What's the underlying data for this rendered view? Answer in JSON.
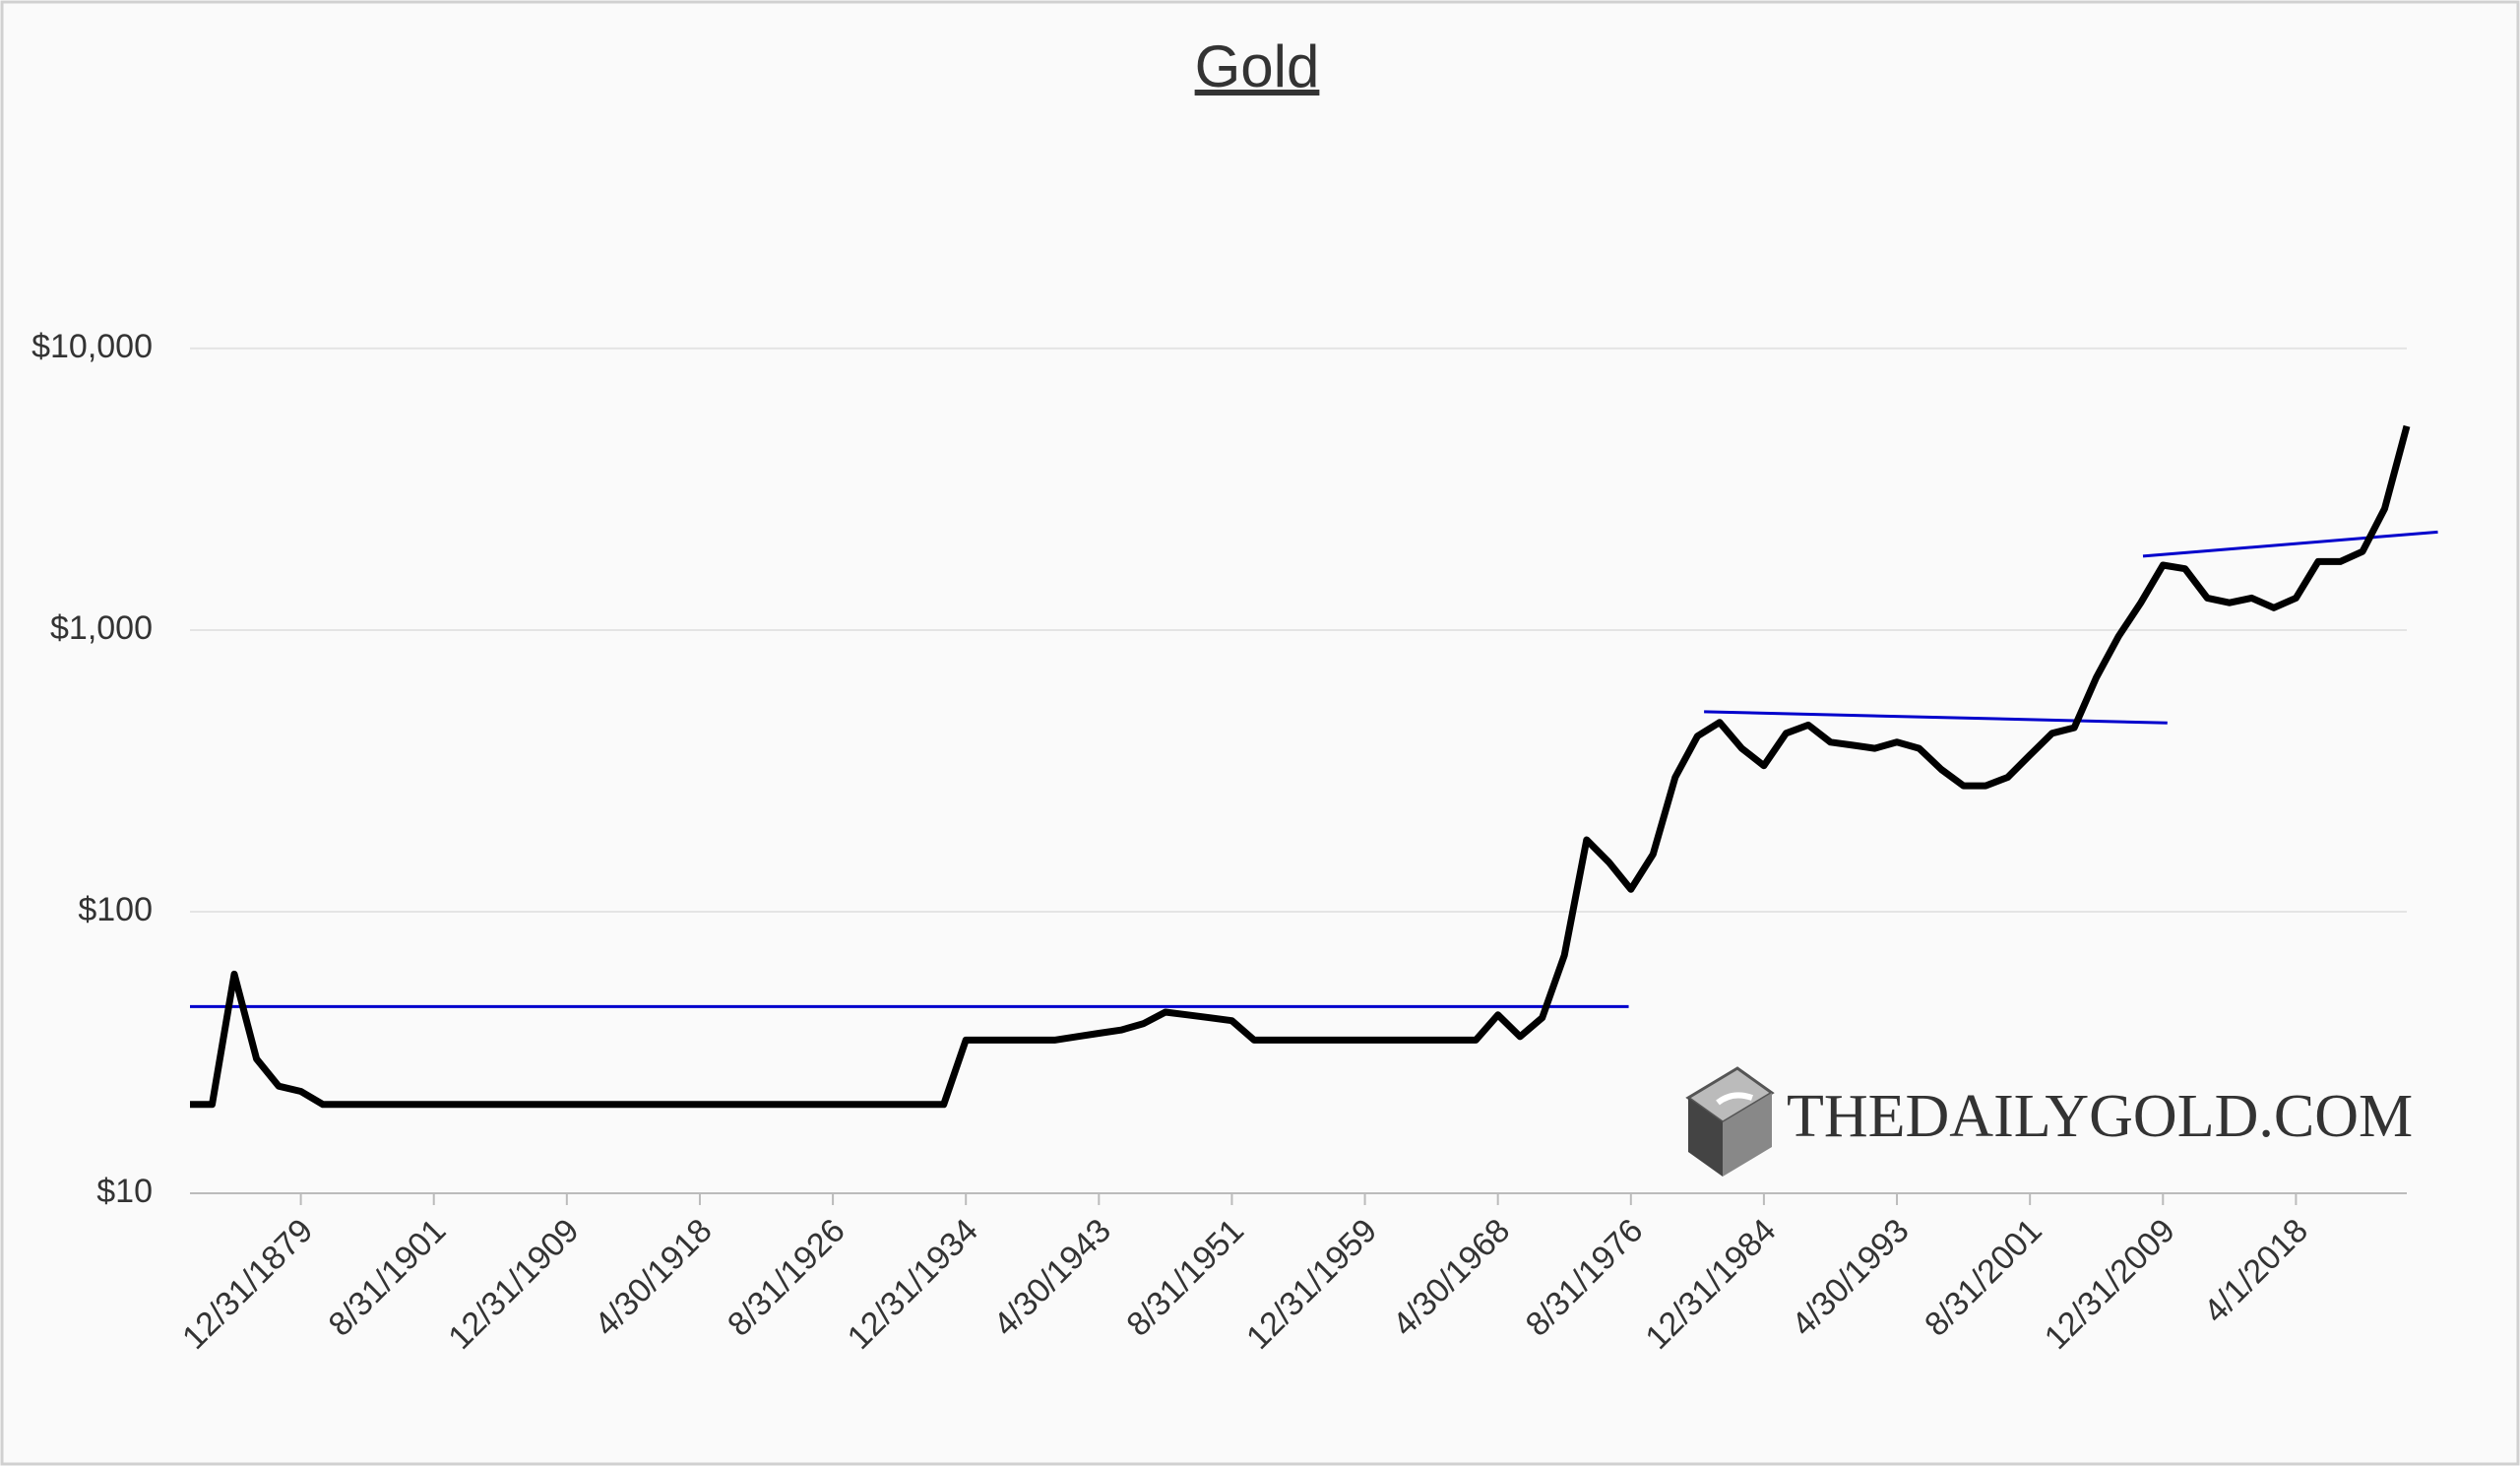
{
  "chart_data": {
    "type": "line",
    "title": "Gold",
    "categories": [
      null,
      null,
      null,
      null,
      null,
      "12/31/1879",
      null,
      null,
      null,
      null,
      null,
      "8/31/1901",
      null,
      null,
      null,
      null,
      null,
      "12/31/1909",
      null,
      null,
      null,
      null,
      null,
      "4/30/1918",
      null,
      null,
      null,
      null,
      null,
      "8/31/1926",
      null,
      null,
      null,
      null,
      null,
      "12/31/1934",
      null,
      null,
      null,
      null,
      null,
      "4/30/1943",
      null,
      null,
      null,
      null,
      null,
      "8/31/1951",
      null,
      null,
      null,
      null,
      null,
      "12/31/1959",
      null,
      null,
      null,
      null,
      null,
      "4/30/1968",
      null,
      null,
      null,
      null,
      null,
      "8/31/1976",
      null,
      null,
      null,
      null,
      null,
      "12/31/1984",
      null,
      null,
      null,
      null,
      null,
      "4/30/1993",
      null,
      null,
      null,
      null,
      null,
      "8/31/2001",
      null,
      null,
      null,
      null,
      null,
      "12/31/2009",
      null,
      null,
      null,
      null,
      null,
      "4/1/2018",
      null,
      null,
      null,
      null,
      null
    ],
    "values": [
      20.67,
      20.67,
      60,
      30,
      24,
      23,
      20.67,
      20.67,
      20.67,
      20.67,
      20.67,
      20.67,
      20.67,
      20.67,
      20.67,
      20.67,
      20.67,
      20.67,
      20.67,
      20.67,
      20.67,
      20.67,
      20.67,
      20.67,
      20.67,
      20.67,
      20.67,
      20.67,
      20.67,
      20.67,
      20.67,
      20.67,
      20.67,
      20.67,
      20.67,
      35,
      35,
      35,
      35,
      35,
      36,
      37,
      38,
      40,
      44,
      43,
      42,
      41,
      35,
      35,
      35,
      35,
      35,
      35,
      35,
      35,
      35,
      35,
      35,
      43,
      36,
      42,
      70,
      180,
      150,
      120,
      160,
      300,
      420,
      470,
      380,
      330,
      430,
      460,
      400,
      390,
      380,
      400,
      380,
      320,
      280,
      280,
      300,
      360,
      430,
      450,
      680,
      950,
      1250,
      1700,
      1650,
      1300,
      1250,
      1300,
      1200,
      1300,
      1750,
      1750,
      1900,
      2700,
      5300
    ],
    "color": "#000000",
    "log_scale": true,
    "ylim": [
      10,
      50000
    ],
    "yticks": [
      {
        "value": 10,
        "label": "$10"
      },
      {
        "value": 100,
        "label": "$100"
      },
      {
        "value": 1000,
        "label": "$1,000"
      },
      {
        "value": 10000,
        "label": "$10,000"
      }
    ],
    "grid": true,
    "trendlines": [
      {
        "x": [
          0,
          64.9
        ],
        "values": [
          46,
          46
        ],
        "color": "#0000cc"
      },
      {
        "x": [
          68.3,
          89.2
        ],
        "values": [
          513,
          468
        ],
        "color": "#0000cc"
      },
      {
        "x": [
          88.1,
          101.4
        ],
        "values": [
          1830,
          2230
        ],
        "color": "#0000cc"
      }
    ],
    "watermark": "THEDAILYGOLD.COM"
  }
}
